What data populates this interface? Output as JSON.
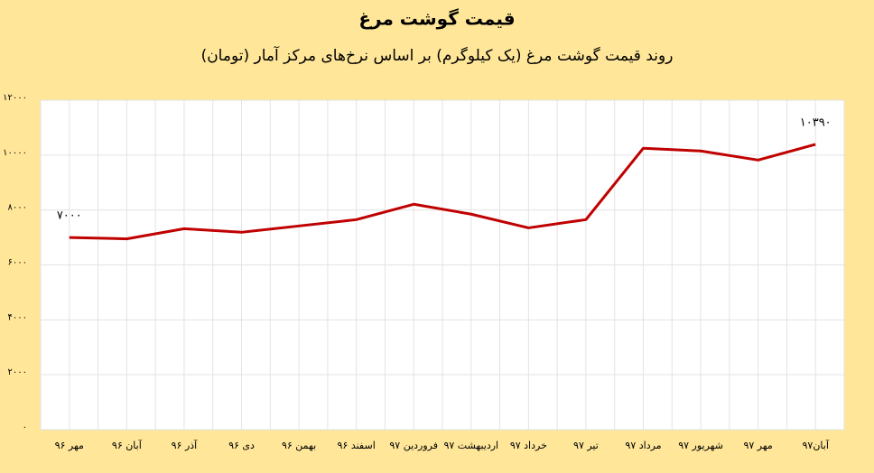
{
  "chart_data": {
    "type": "line",
    "title": "قیمت گوشت مرغ",
    "subtitle": "روند قیمت گوشت مرغ (یک کیلوگرم) بر اساس نرخ‌های مرکز آمار (تومان)",
    "categories": [
      "مهر ۹۶",
      "آبان ۹۶",
      "آذر ۹۶",
      "دی ۹۶",
      "بهمن ۹۶",
      "اسفند ۹۶",
      "فروردین ۹۷",
      "اردیبهشت ۹۷",
      "خرداد ۹۷",
      "تیر ۹۷",
      "مرداد ۹۷",
      "شهریور ۹۷",
      "مهر ۹۷",
      "آبان۹۷"
    ],
    "values": [
      7000,
      6950,
      7320,
      7190,
      7420,
      7650,
      8210,
      7850,
      7350,
      7650,
      10250,
      10150,
      9820,
      10390
    ],
    "value_labels": [
      "۷۰۰۰",
      null,
      null,
      null,
      null,
      null,
      null,
      null,
      null,
      null,
      null,
      null,
      null,
      "۱۰۳۹۰"
    ],
    "color": "#c00000",
    "ylim": [
      0,
      12000
    ],
    "yticks": [
      {
        "value": 0,
        "label": "۰"
      },
      {
        "value": 2000,
        "label": "۲۰۰۰"
      },
      {
        "value": 4000,
        "label": "۴۰۰۰"
      },
      {
        "value": 6000,
        "label": "۶۰۰۰"
      },
      {
        "value": 8000,
        "label": "۸۰۰۰"
      },
      {
        "value": 10000,
        "label": "۱۰۰۰۰"
      },
      {
        "value": 12000,
        "label": "۱۲۰۰۰"
      }
    ],
    "grid": true
  }
}
